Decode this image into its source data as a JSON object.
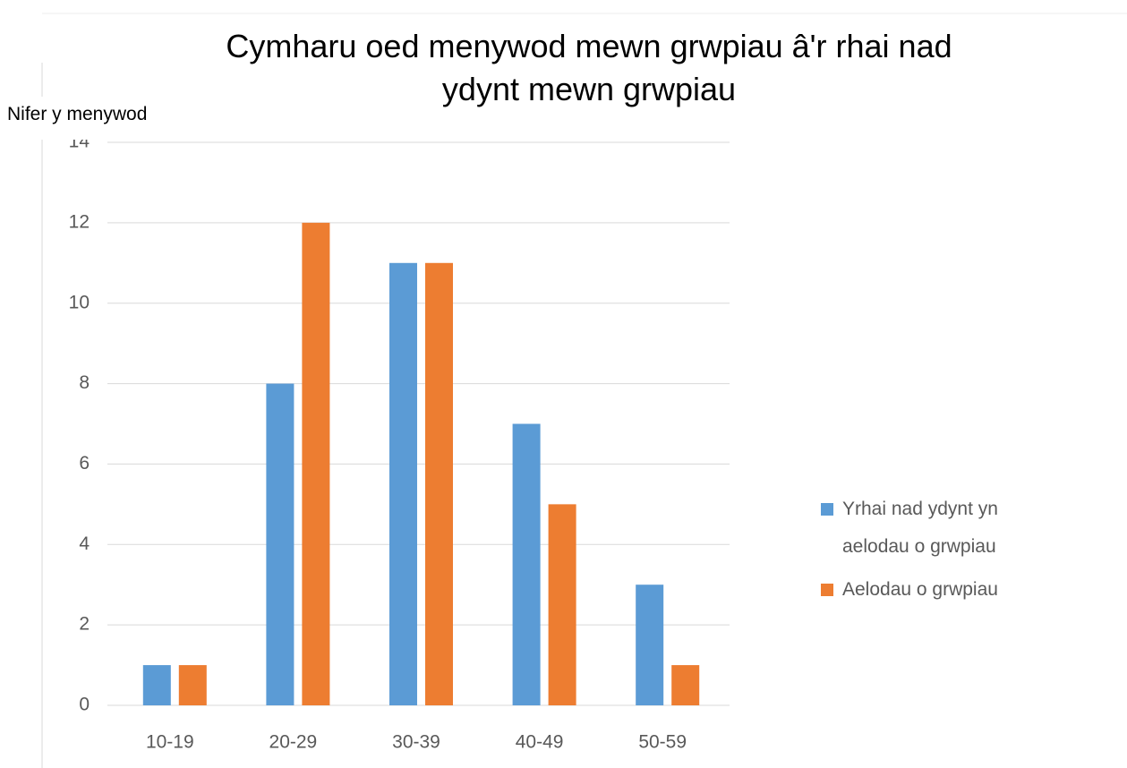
{
  "chart_data": {
    "type": "bar",
    "title": "Cymharu oed menywod mewn grwpiau â'r rhai nad ydynt mewn grwpiau",
    "y_label": "Nifer y menywod",
    "categories": [
      "10-19",
      "20-29",
      "30-39",
      "40-49",
      "50-59"
    ],
    "series": [
      {
        "name": "Yrhai nad ydynt yn aelodau o grwpiau",
        "color": "#5b9bd5",
        "values": [
          1,
          8,
          11,
          7,
          3
        ]
      },
      {
        "name": "Aelodau o grwpiau",
        "color": "#ed7d31",
        "values": [
          1,
          12,
          11,
          5,
          1
        ]
      }
    ],
    "ylim": [
      0,
      14
    ],
    "yticks": [
      0,
      2,
      4,
      6,
      8,
      10,
      12,
      14
    ],
    "grid": true,
    "legend": "right"
  }
}
